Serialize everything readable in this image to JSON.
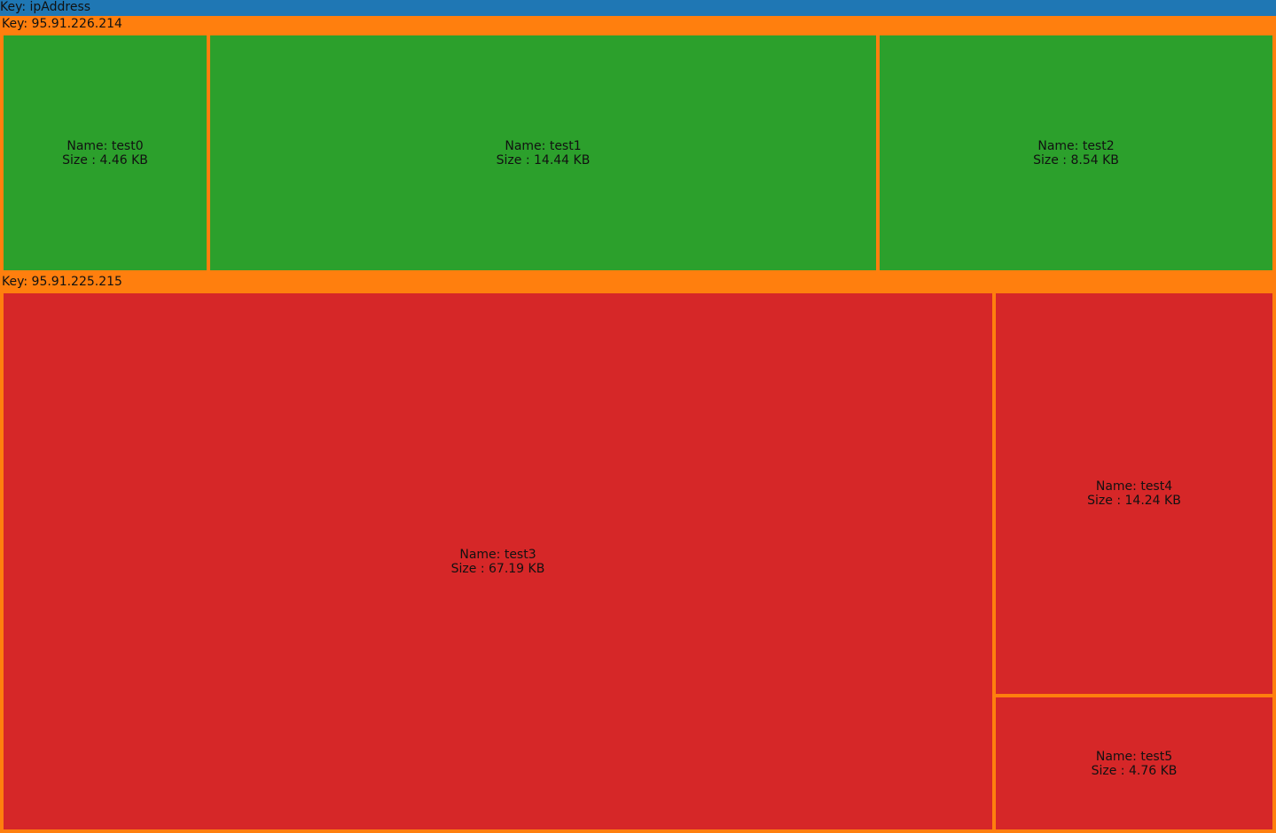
{
  "chart_data": {
    "type": "treemap",
    "root_label": "Key: ipAddress",
    "colors": {
      "root": "#1f77b4",
      "group": "#ff7f0e",
      "95.91.226.214": "#2ca02c",
      "95.91.225.215": "#d62728"
    },
    "groups": [
      {
        "label": "Key: 95.91.226.214",
        "key": "95.91.226.214",
        "children": [
          {
            "name_label": "Name: test0",
            "size_label": "Size : 4.46 KB",
            "value": 4.46
          },
          {
            "name_label": "Name: test1",
            "size_label": "Size : 14.44 KB",
            "value": 14.44
          },
          {
            "name_label": "Name: test2",
            "size_label": "Size : 8.54 KB",
            "value": 8.54
          }
        ]
      },
      {
        "label": "Key: 95.91.225.215",
        "key": "95.91.225.215",
        "children": [
          {
            "name_label": "Name: test3",
            "size_label": "Size : 67.19 KB",
            "value": 67.19
          },
          {
            "name_label": "Name: test4",
            "size_label": "Size : 14.24 KB",
            "value": 14.24
          },
          {
            "name_label": "Name: test5",
            "size_label": "Size : 4.76 KB",
            "value": 4.76
          }
        ]
      }
    ]
  }
}
